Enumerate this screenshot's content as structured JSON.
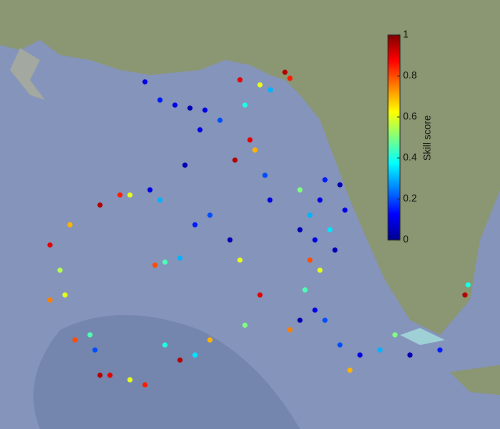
{
  "colorbar": {
    "label": "Skill score",
    "ticks": [
      0,
      0.2,
      0.4,
      0.6,
      0.8,
      1
    ]
  },
  "points": [
    {
      "lon": -86.81,
      "lat": 29.88,
      "skill": 0.1
    },
    {
      "lon": -86.48,
      "lat": 29.52,
      "skill": 0.15
    },
    {
      "lon": -86.15,
      "lat": 29.42,
      "skill": 0.1
    },
    {
      "lon": -85.82,
      "lat": 29.36,
      "skill": 0.05
    },
    {
      "lon": -85.49,
      "lat": 29.32,
      "skill": 0.1
    },
    {
      "lon": -85.16,
      "lat": 29.12,
      "skill": 0.2
    },
    {
      "lon": -84.72,
      "lat": 29.92,
      "skill": 0.9
    },
    {
      "lon": -84.28,
      "lat": 29.82,
      "skill": 0.6
    },
    {
      "lon": -83.73,
      "lat": 30.07,
      "skill": 0.95
    },
    {
      "lon": -83.62,
      "lat": 29.95,
      "skill": 0.85
    },
    {
      "lon": -84.05,
      "lat": 29.72,
      "skill": 0.3
    },
    {
      "lon": -84.5,
      "lat": 28.73,
      "skill": 0.9
    },
    {
      "lon": -84.39,
      "lat": 28.53,
      "skill": 0.7
    },
    {
      "lon": -84.83,
      "lat": 28.33,
      "skill": 0.95
    },
    {
      "lon": -84.61,
      "lat": 29.42,
      "skill": 0.4
    },
    {
      "lon": -84.17,
      "lat": 28.03,
      "skill": 0.2
    },
    {
      "lon": -84.06,
      "lat": 27.54,
      "skill": 0.1
    },
    {
      "lon": -83.4,
      "lat": 27.74,
      "skill": 0.5
    },
    {
      "lon": -82.96,
      "lat": 27.54,
      "skill": 0.1
    },
    {
      "lon": -82.85,
      "lat": 27.94,
      "skill": 0.15
    },
    {
      "lon": -83.18,
      "lat": 27.24,
      "skill": 0.3
    },
    {
      "lon": -83.4,
      "lat": 26.95,
      "skill": 0.05
    },
    {
      "lon": -83.07,
      "lat": 26.75,
      "skill": 0.1
    },
    {
      "lon": -82.74,
      "lat": 26.95,
      "skill": 0.35
    },
    {
      "lon": -82.63,
      "lat": 26.55,
      "skill": 0.05
    },
    {
      "lon": -83.18,
      "lat": 26.35,
      "skill": 0.8
    },
    {
      "lon": -82.96,
      "lat": 26.15,
      "skill": 0.6
    },
    {
      "lon": -83.29,
      "lat": 25.76,
      "skill": 0.45
    },
    {
      "lon": -83.07,
      "lat": 25.36,
      "skill": 0.1
    },
    {
      "lon": -82.85,
      "lat": 25.16,
      "skill": 0.2
    },
    {
      "lon": -83.4,
      "lat": 25.16,
      "skill": 0.05
    },
    {
      "lon": -83.62,
      "lat": 24.97,
      "skill": 0.75
    },
    {
      "lon": -82.52,
      "lat": 24.67,
      "skill": 0.2
    },
    {
      "lon": -82.08,
      "lat": 24.47,
      "skill": 0.1
    },
    {
      "lon": -81.64,
      "lat": 24.57,
      "skill": 0.3
    },
    {
      "lon": -80.98,
      "lat": 24.47,
      "skill": 0.05
    },
    {
      "lon": -80.32,
      "lat": 24.57,
      "skill": 0.15
    },
    {
      "lon": -79.77,
      "lat": 25.66,
      "skill": 0.95
    },
    {
      "lon": -79.7,
      "lat": 25.86,
      "skill": 0.4
    },
    {
      "lon": -81.31,
      "lat": 24.87,
      "skill": 0.5
    },
    {
      "lon": -82.3,
      "lat": 24.17,
      "skill": 0.7
    },
    {
      "lon": -85.6,
      "lat": 28.93,
      "skill": 0.1
    },
    {
      "lon": -85.93,
      "lat": 28.23,
      "skill": 0.05
    },
    {
      "lon": -86.7,
      "lat": 27.74,
      "skill": 0.1
    },
    {
      "lon": -86.48,
      "lat": 27.54,
      "skill": 0.3
    },
    {
      "lon": -87.14,
      "lat": 27.64,
      "skill": 0.6
    },
    {
      "lon": -85.38,
      "lat": 27.24,
      "skill": 0.2
    },
    {
      "lon": -85.71,
      "lat": 27.05,
      "skill": 0.15
    },
    {
      "lon": -84.94,
      "lat": 26.75,
      "skill": 0.05
    },
    {
      "lon": -84.72,
      "lat": 26.35,
      "skill": 0.6
    },
    {
      "lon": -84.28,
      "lat": 25.66,
      "skill": 0.9
    },
    {
      "lon": -84.61,
      "lat": 25.06,
      "skill": 0.5
    },
    {
      "lon": -85.38,
      "lat": 24.77,
      "skill": 0.7
    },
    {
      "lon": -85.71,
      "lat": 24.47,
      "skill": 0.35
    },
    {
      "lon": -86.04,
      "lat": 24.37,
      "skill": 0.95
    },
    {
      "lon": -86.37,
      "lat": 24.67,
      "skill": 0.4
    },
    {
      "lon": -86.81,
      "lat": 23.88,
      "skill": 0.85
    },
    {
      "lon": -87.14,
      "lat": 23.98,
      "skill": 0.6
    },
    {
      "lon": -87.58,
      "lat": 24.07,
      "skill": 0.9
    },
    {
      "lon": -87.91,
      "lat": 24.57,
      "skill": 0.2
    },
    {
      "lon": -88.35,
      "lat": 24.77,
      "skill": 0.8
    },
    {
      "lon": -88.9,
      "lat": 25.56,
      "skill": 0.75
    },
    {
      "lon": -88.57,
      "lat": 25.66,
      "skill": 0.6
    },
    {
      "lon": -88.68,
      "lat": 26.15,
      "skill": 0.55
    },
    {
      "lon": -88.9,
      "lat": 26.65,
      "skill": 0.9
    },
    {
      "lon": -88.46,
      "lat": 27.05,
      "skill": 0.7
    },
    {
      "lon": -87.8,
      "lat": 27.44,
      "skill": 0.95
    },
    {
      "lon": -87.36,
      "lat": 27.64,
      "skill": 0.85
    },
    {
      "lon": -87.8,
      "lat": 24.07,
      "skill": 0.95
    },
    {
      "lon": -88.02,
      "lat": 24.87,
      "skill": 0.45
    },
    {
      "lon": -86.59,
      "lat": 26.25,
      "skill": 0.8
    },
    {
      "lon": -86.37,
      "lat": 26.31,
      "skill": 0.45
    },
    {
      "lon": -86.04,
      "lat": 26.39,
      "skill": 0.3
    },
    {
      "lon": -82.52,
      "lat": 27.84,
      "skill": 0.05
    },
    {
      "lon": -82.41,
      "lat": 27.34,
      "skill": 0.1
    }
  ]
}
